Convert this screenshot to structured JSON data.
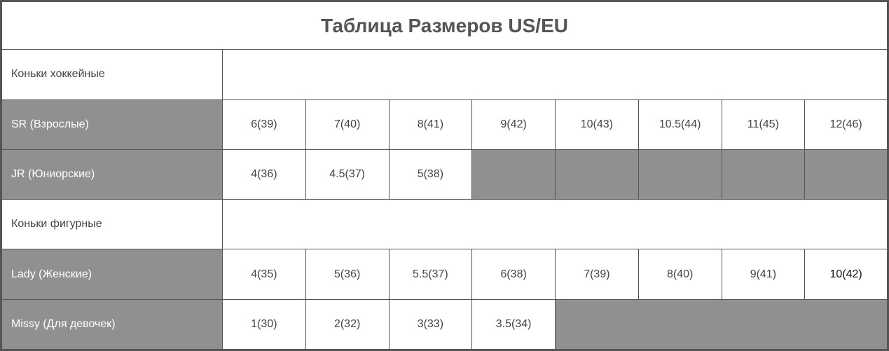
{
  "title": "Таблица Размеров US/EU",
  "sections": [
    {
      "label": "Коньки хоккейные",
      "rows": [
        {
          "label": "SR (Взрослые)",
          "sizes": [
            "6(39)",
            "7(40)",
            "8(41)",
            "9(42)",
            "10(43)",
            "10.5(44)",
            "11(45)",
            "12(46)"
          ]
        },
        {
          "label": "JR (Юниорские)",
          "sizes": [
            "4(36)",
            "4.5(37)",
            "5(38)"
          ]
        }
      ]
    },
    {
      "label": "Коньки фигурные",
      "rows": [
        {
          "label": "Lady (Женские)",
          "sizes": [
            "4(35)",
            "5(36)",
            "5.5(37)",
            "6(38)",
            "7(39)",
            "8(40)",
            "9(41)",
            "10(42)"
          ]
        },
        {
          "label": "Missy (Для девочек)",
          "sizes": [
            "1(30)",
            "2(32)",
            "3(33)",
            "3.5(34)"
          ]
        }
      ]
    }
  ]
}
